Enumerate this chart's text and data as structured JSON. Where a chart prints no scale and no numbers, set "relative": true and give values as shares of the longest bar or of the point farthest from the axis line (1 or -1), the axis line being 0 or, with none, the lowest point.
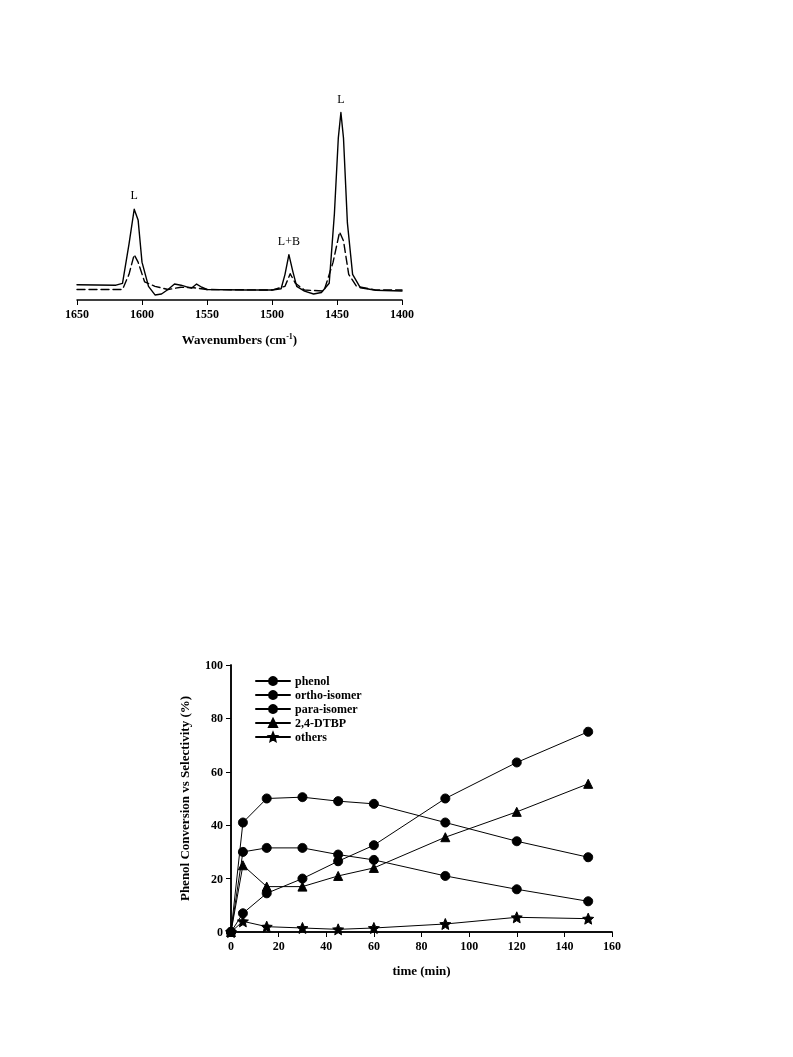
{
  "chart_data": [
    {
      "type": "line",
      "relative": true,
      "xlabel": "Wavenumbers (cm$^{-1}$)",
      "xlim": [
        1650,
        1400
      ],
      "xticks": [
        1650,
        1600,
        1550,
        1500,
        1450,
        1400
      ],
      "grid": false,
      "legend": false,
      "marker": "none",
      "annotations": [
        {
          "text": "L",
          "x": 1606,
          "y": 0.484
        },
        {
          "text": "L+B",
          "x": 1487,
          "y": 0.242
        },
        {
          "text": "L",
          "x": 1447,
          "y": 1
        }
      ],
      "series": [
        {
          "color": "#000000",
          "line_style": "solid",
          "x": [
            1650,
            1620,
            1615,
            1610,
            1606,
            1603,
            1600,
            1595,
            1590,
            1585,
            1580,
            1575,
            1570,
            1565,
            1562,
            1558,
            1554,
            1550,
            1520,
            1500,
            1493,
            1490,
            1487,
            1484,
            1481,
            1475,
            1468,
            1462,
            1456,
            1452,
            1449,
            1447,
            1445,
            1442,
            1438,
            1432,
            1420,
            1400
          ],
          "values": [
            0.081,
            0.079,
            0.089,
            0.298,
            0.484,
            0.427,
            0.202,
            0.073,
            0.027,
            0.032,
            0.056,
            0.085,
            0.079,
            0.069,
            0.063,
            0.085,
            0.068,
            0.056,
            0.053,
            0.053,
            0.06,
            0.137,
            0.242,
            0.153,
            0.073,
            0.047,
            0.032,
            0.04,
            0.089,
            0.46,
            0.863,
            1,
            0.863,
            0.411,
            0.137,
            0.065,
            0.052,
            0.048
          ]
        },
        {
          "color": "#000000",
          "line_style": "dashed",
          "x": [
            1650,
            1615,
            1610,
            1606,
            1603,
            1598,
            1590,
            1580,
            1570,
            1560,
            1550,
            1500,
            1490,
            1486,
            1482,
            1475,
            1460,
            1453,
            1448,
            1445,
            1441,
            1435,
            1420,
            1400
          ],
          "values": [
            0.056,
            0.056,
            0.137,
            0.242,
            0.202,
            0.097,
            0.073,
            0.056,
            0.068,
            0.065,
            0.056,
            0.053,
            0.073,
            0.14,
            0.089,
            0.053,
            0.048,
            0.202,
            0.363,
            0.315,
            0.137,
            0.073,
            0.053,
            0.053
          ]
        }
      ]
    },
    {
      "type": "line",
      "xlabel": "time (min)",
      "ylabel": "Phenol Conversion vs Selectivity (%)",
      "x": [
        0,
        5,
        15,
        30,
        45,
        60,
        90,
        120,
        150
      ],
      "xlim": [
        0,
        160
      ],
      "xticks": [
        0,
        20,
        40,
        60,
        80,
        100,
        120,
        140,
        160
      ],
      "ylim": [
        0,
        100
      ],
      "yticks": [
        0,
        20,
        40,
        60,
        80,
        100
      ],
      "grid": false,
      "legend": "top left",
      "line_style": "solid",
      "series": [
        {
          "name": "phenol",
          "color": "#000000",
          "marker": "circle",
          "values": [
            0,
            7,
            14.5,
            20,
            26.5,
            32.5,
            50,
            63.5,
            75
          ]
        },
        {
          "name": "ortho-isomer",
          "color": "#000000",
          "marker": "circle",
          "values": [
            0,
            30,
            31.5,
            31.5,
            29,
            27,
            21,
            16,
            11.5
          ]
        },
        {
          "name": "para-isomer",
          "color": "#000000",
          "marker": "circle",
          "values": [
            0,
            41,
            50,
            50.5,
            49,
            48,
            41,
            34,
            28
          ]
        },
        {
          "name": "2,4-DTBP",
          "color": "#000000",
          "marker": "triangle",
          "values": [
            0,
            25,
            17,
            17,
            21,
            24,
            35.5,
            45,
            55.5
          ]
        },
        {
          "name": "others",
          "color": "#000000",
          "marker": "star",
          "values": [
            0,
            4,
            2,
            1.5,
            1,
            1.5,
            3,
            5.5,
            5
          ]
        }
      ]
    }
  ]
}
